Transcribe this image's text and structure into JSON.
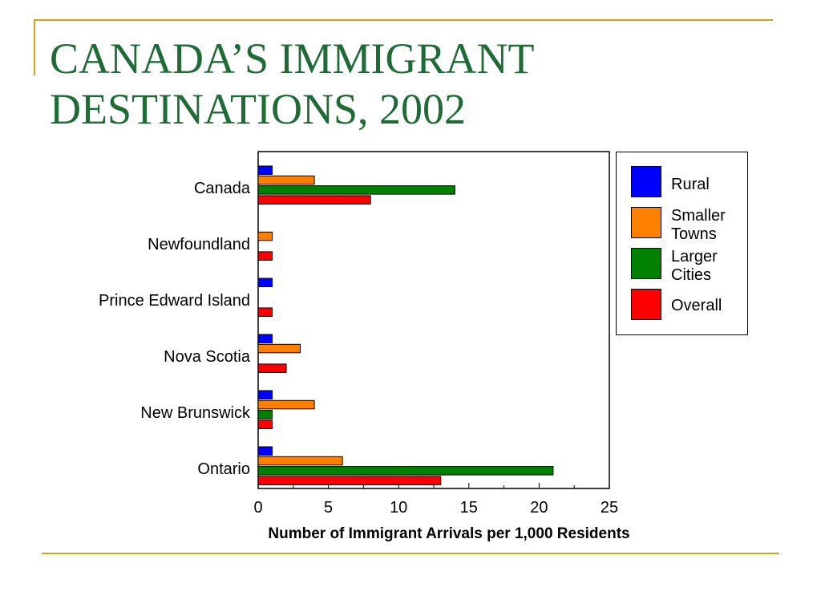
{
  "slide": {
    "title_line1": "CANADA’S IMMIGRANT",
    "title_line2": "DESTINATIONS, 2002"
  },
  "colors": {
    "title": "#1f6b35",
    "rule": "#d4a017",
    "rural": "#0000ff",
    "smaller_towns": "#ff8000",
    "larger_cities": "#008000",
    "overall": "#ff0000"
  },
  "legend": {
    "rural": "Rural",
    "smaller_towns": "Smaller Towns",
    "larger_cities": "Larger Cities",
    "overall": "Overall"
  },
  "chart_data": {
    "type": "bar",
    "orientation": "horizontal",
    "categories": [
      "Canada",
      "Newfoundland",
      "Prince Edward Island",
      "Nova Scotia",
      "New Brunswick",
      "Ontario"
    ],
    "series": [
      {
        "name": "Rural",
        "color": "#0000ff",
        "values": [
          1,
          0,
          1,
          1,
          1,
          1
        ]
      },
      {
        "name": "Smaller Towns",
        "color": "#ff8000",
        "values": [
          4,
          1,
          0,
          3,
          4,
          6
        ]
      },
      {
        "name": "Larger Cities",
        "color": "#008000",
        "values": [
          14,
          0,
          0,
          0,
          1,
          21
        ]
      },
      {
        "name": "Overall",
        "color": "#ff0000",
        "values": [
          8,
          1,
          1,
          2,
          1,
          13
        ]
      }
    ],
    "xlabel": "Number of Immigrant Arrivals per 1,000 Residents",
    "ylabel": "",
    "xlim": [
      0,
      25
    ],
    "xticks": [
      0,
      5,
      10,
      15,
      20,
      25
    ],
    "grid": false,
    "legend_position": "right"
  }
}
